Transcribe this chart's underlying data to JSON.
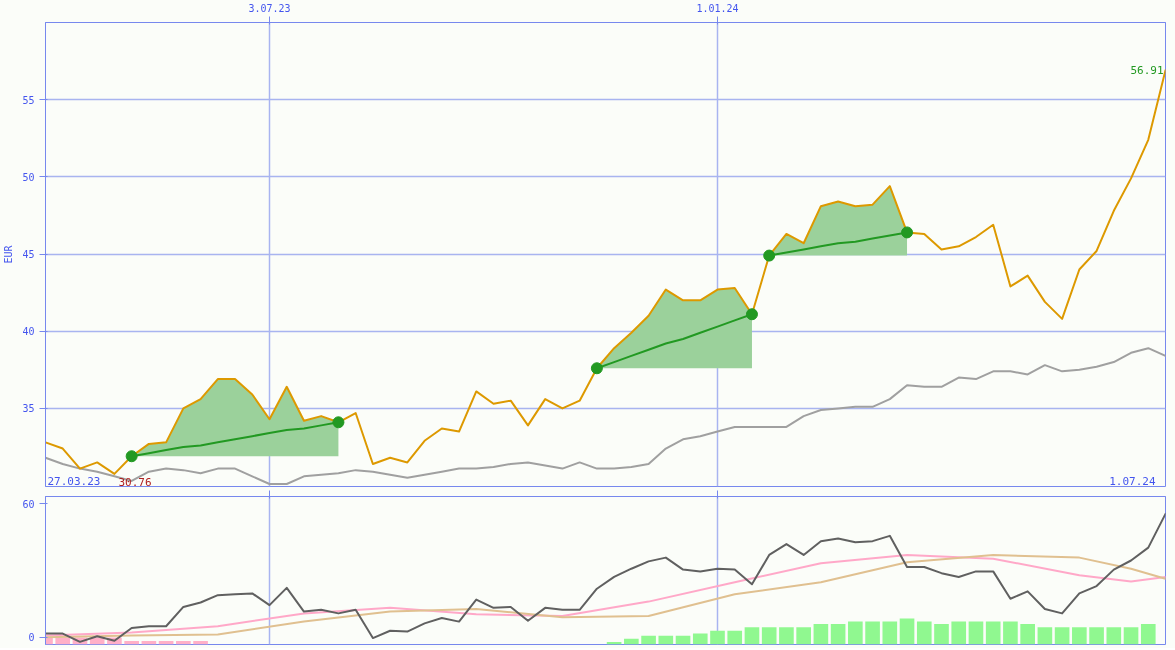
{
  "chart_data": [
    {
      "type": "line",
      "ylabel": "EUR",
      "x": [
        "2023-04-03",
        "2023-04-10",
        "2023-04-17",
        "2023-04-24",
        "2023-05-01",
        "2023-05-08",
        "2023-05-15",
        "2023-05-22",
        "2023-05-29",
        "2023-06-05",
        "2023-06-12",
        "2023-06-19",
        "2023-06-26",
        "2023-07-03",
        "2023-07-10",
        "2023-07-17",
        "2023-07-24",
        "2023-07-31",
        "2023-08-07",
        "2023-08-14",
        "2023-08-21",
        "2023-08-28",
        "2023-09-04",
        "2023-09-11",
        "2023-09-18",
        "2023-09-25",
        "2023-10-02",
        "2023-10-09",
        "2023-10-16",
        "2023-10-23",
        "2023-10-30",
        "2023-11-06",
        "2023-11-13",
        "2023-11-20",
        "2023-11-27",
        "2023-12-04",
        "2023-12-11",
        "2023-12-18",
        "2023-12-25",
        "2024-01-01",
        "2024-01-08",
        "2024-01-15",
        "2024-01-22",
        "2024-01-29",
        "2024-02-05",
        "2024-02-12",
        "2024-02-19",
        "2024-02-26",
        "2024-03-04",
        "2024-03-11",
        "2024-03-18",
        "2024-03-25",
        "2024-04-01",
        "2024-04-08",
        "2024-04-15",
        "2024-04-22",
        "2024-04-29",
        "2024-05-06",
        "2024-05-13",
        "2024-05-20",
        "2024-05-27",
        "2024-06-03",
        "2024-06-10",
        "2024-06-17",
        "2024-06-24",
        "2024-07-01"
      ],
      "xlim": [
        "2023-04-03",
        "2024-07-01"
      ],
      "xticks": [
        {
          "value": "2023-07-03",
          "label": "3.07.23"
        },
        {
          "value": "2024-01-01",
          "label": "1.01.24"
        }
      ],
      "ylim": [
        29.94,
        60
      ],
      "yticks": [
        35,
        40,
        45,
        50,
        55
      ],
      "grid": true,
      "series": [
        {
          "type": "line",
          "color": "#229922",
          "x": [
            "2023-05-08",
            "2023-05-15",
            "2023-05-22",
            "2023-05-29",
            "2023-06-05",
            "2023-06-12",
            "2023-06-19",
            "2023-06-26",
            "2023-07-03",
            "2023-07-10",
            "2023-07-17",
            "2023-07-24",
            "2023-07-31"
          ],
          "values": [
            31.9,
            32.1,
            32.3,
            32.5,
            32.6,
            32.8,
            33.0,
            33.2,
            33.4,
            33.6,
            33.7,
            33.9,
            34.1
          ],
          "upper": [
            31.9,
            32.7,
            32.8,
            35.0,
            35.6,
            36.9,
            36.9,
            35.9,
            34.3,
            36.4,
            34.2,
            34.5,
            34.1
          ],
          "lower": [
            31.9,
            31.9,
            31.9,
            31.9,
            31.9,
            31.9,
            31.9,
            31.9,
            31.9,
            31.9,
            31.9,
            31.9,
            31.9
          ]
        },
        {
          "type": "line",
          "color": "#229922",
          "x": [
            "2023-11-13",
            "2023-11-20",
            "2023-11-27",
            "2023-12-04",
            "2023-12-11",
            "2023-12-18",
            "2023-12-25",
            "2024-01-01",
            "2024-01-08",
            "2024-01-15"
          ],
          "values": [
            37.6,
            38.0,
            38.4,
            38.8,
            39.2,
            39.5,
            39.9,
            40.3,
            40.7,
            41.1
          ],
          "upper": [
            37.6,
            38.9,
            39.9,
            41.0,
            42.7,
            42.0,
            42.0,
            42.7,
            42.8,
            41.1
          ],
          "lower": [
            37.6,
            37.6,
            37.6,
            37.6,
            37.6,
            37.6,
            37.6,
            37.6,
            37.6,
            37.6
          ]
        },
        {
          "type": "line",
          "color": "#229922",
          "x": [
            "2024-01-22",
            "2024-01-29",
            "2024-02-05",
            "2024-02-12",
            "2024-02-19",
            "2024-02-26",
            "2024-03-04",
            "2024-03-11",
            "2024-03-18"
          ],
          "values": [
            44.9,
            45.1,
            45.3,
            45.5,
            45.7,
            45.8,
            46.0,
            46.2,
            46.4
          ],
          "upper": [
            44.9,
            46.3,
            45.7,
            48.1,
            48.4,
            48.1,
            48.2,
            49.4,
            46.4
          ],
          "lower": [
            44.9,
            44.9,
            44.9,
            44.9,
            44.9,
            44.9,
            44.9,
            44.9,
            44.9
          ]
        },
        {
          "color": "#a0a0a0",
          "values": [
            31.8,
            31.4,
            31.1,
            30.9,
            30.6,
            30.3,
            30.9,
            31.1,
            31.0,
            30.8,
            31.1,
            31.1,
            30.6,
            30.1,
            30.1,
            30.6,
            30.7,
            30.8,
            31.0,
            30.9,
            30.7,
            30.5,
            30.7,
            30.9,
            31.1,
            31.1,
            31.2,
            31.4,
            31.5,
            31.3,
            31.1,
            31.5,
            31.1,
            31.1,
            31.2,
            31.4,
            32.4,
            33.0,
            33.2,
            33.5,
            33.8,
            33.8,
            33.8,
            33.8,
            34.5,
            34.9,
            35.0,
            35.1,
            35.1,
            35.6,
            36.5,
            36.4,
            36.4,
            37.0,
            36.9,
            37.4,
            37.4,
            37.2,
            37.8,
            37.4,
            37.5,
            37.7,
            38.0,
            38.6,
            38.9,
            38.4
          ]
        },
        {
          "color": "#dd9900",
          "values": [
            32.8,
            32.4,
            31.1,
            31.5,
            30.76,
            31.9,
            32.7,
            32.8,
            35.0,
            35.6,
            36.9,
            36.9,
            35.9,
            34.3,
            36.4,
            34.2,
            34.5,
            34.1,
            34.7,
            31.4,
            31.8,
            31.5,
            32.9,
            33.7,
            33.5,
            36.1,
            35.3,
            35.5,
            33.9,
            35.6,
            35.0,
            35.5,
            37.6,
            38.9,
            39.9,
            41.0,
            42.7,
            42.0,
            42.0,
            42.7,
            42.8,
            41.1,
            44.9,
            46.3,
            45.7,
            48.1,
            48.4,
            48.1,
            48.2,
            49.4,
            46.4,
            46.3,
            45.3,
            45.5,
            46.1,
            46.9,
            42.9,
            43.6,
            41.9,
            40.8,
            44.0,
            45.2,
            47.8,
            49.9,
            52.4,
            56.91
          ]
        },
        {
          "type": "scatter",
          "color": "#229922",
          "marker": "circle",
          "x": [
            "2023-05-08",
            "2023-07-31",
            "2023-11-13",
            "2024-01-15",
            "2024-01-22",
            "2024-03-18"
          ],
          "values": [
            31.9,
            34.1,
            37.6,
            41.1,
            44.9,
            46.4
          ]
        }
      ],
      "annotations": [
        {
          "text": "30.76",
          "x": "2023-05-01",
          "y": 30.76
        },
        {
          "text": "56.91",
          "x": "2024-07-01",
          "y": 56.91
        },
        "27.03.23",
        "1.07.24"
      ]
    },
    {
      "type": "line",
      "x": [
        "2023-04-03",
        "2023-04-10",
        "2023-04-17",
        "2023-04-24",
        "2023-05-01",
        "2023-05-08",
        "2023-05-15",
        "2023-05-22",
        "2023-05-29",
        "2023-06-05",
        "2023-06-12",
        "2023-06-19",
        "2023-06-26",
        "2023-07-03",
        "2023-07-10",
        "2023-07-17",
        "2023-07-24",
        "2023-07-31",
        "2023-08-07",
        "2023-08-14",
        "2023-08-21",
        "2023-08-28",
        "2023-09-04",
        "2023-09-11",
        "2023-09-18",
        "2023-09-25",
        "2023-10-02",
        "2023-10-09",
        "2023-10-16",
        "2023-10-23",
        "2023-10-30",
        "2023-11-06",
        "2023-11-13",
        "2023-11-20",
        "2023-11-27",
        "2023-12-04",
        "2023-12-11",
        "2023-12-18",
        "2023-12-25",
        "2024-01-01",
        "2024-01-08",
        "2024-01-15",
        "2024-01-22",
        "2024-01-29",
        "2024-02-05",
        "2024-02-12",
        "2024-02-19",
        "2024-02-26",
        "2024-03-04",
        "2024-03-11",
        "2024-03-18",
        "2024-03-25",
        "2024-04-01",
        "2024-04-08",
        "2024-04-15",
        "2024-04-22",
        "2024-04-29",
        "2024-05-06",
        "2024-05-13",
        "2024-05-20",
        "2024-05-27",
        "2024-06-03",
        "2024-06-10",
        "2024-06-17",
        "2024-06-24",
        "2024-07-01"
      ],
      "xlim": [
        "2023-04-03",
        "2024-07-01"
      ],
      "xticks": [
        {
          "value": "2023-07-03",
          "label": null
        },
        {
          "value": "2024-01-01",
          "label": null
        }
      ],
      "ylim": [
        -3.3,
        63.3
      ],
      "yticks": [
        0,
        60
      ],
      "grid": "x",
      "tick_labels": "y",
      "series": [
        {
          "type": "bar",
          "color": "#ffb0c8",
          "values": [
            3.2,
            3.2,
            3.2,
            3.2,
            3.2,
            1.6,
            1.6,
            1.6,
            1.6,
            1.6,
            null,
            null,
            null,
            null,
            null,
            null,
            null,
            null,
            null,
            null,
            null,
            null,
            null,
            null,
            null,
            null,
            null,
            null,
            null,
            null,
            null,
            null,
            null,
            null,
            null,
            null,
            null,
            null,
            null,
            null,
            null,
            null,
            null,
            null,
            null,
            null,
            null,
            null,
            null,
            null,
            null,
            null,
            null,
            null,
            null,
            null,
            null,
            null,
            null,
            null,
            null,
            null,
            null,
            null,
            null,
            null
          ],
          "base": [
            -3.3,
            -3.3,
            -3.3,
            -3.3,
            -3.3,
            -3.3,
            -3.3,
            -3.3,
            -3.3,
            -3.3,
            null,
            null,
            null,
            null,
            null,
            null,
            null,
            null,
            null,
            null,
            null,
            null,
            null,
            null,
            null,
            null,
            null,
            null,
            null,
            null,
            null,
            null,
            null,
            null,
            null,
            null,
            null,
            null,
            null,
            null,
            null,
            null,
            null,
            null,
            null,
            null,
            null,
            null,
            null,
            null,
            null,
            null,
            null,
            null,
            null,
            null,
            null,
            null,
            null,
            null,
            null,
            null,
            null,
            null,
            null,
            null
          ]
        },
        {
          "type": "bar",
          "color": "#90f890",
          "values": [
            null,
            null,
            null,
            null,
            null,
            null,
            null,
            null,
            null,
            null,
            null,
            null,
            null,
            null,
            null,
            null,
            null,
            null,
            null,
            null,
            null,
            null,
            null,
            null,
            null,
            null,
            null,
            null,
            null,
            null,
            null,
            null,
            null,
            1.1,
            2.6,
            3.9,
            3.9,
            3.9,
            5.0,
            6.2,
            6.2,
            7.8,
            7.8,
            7.8,
            7.8,
            9.2,
            9.2,
            10.4,
            10.4,
            10.4,
            11.7,
            10.4,
            9.2,
            10.4,
            10.4,
            10.4,
            10.4,
            9.2,
            7.8,
            7.8,
            7.8,
            7.8,
            7.8,
            7.8,
            9.2,
            null
          ],
          "base": [
            null,
            null,
            null,
            null,
            null,
            null,
            null,
            null,
            null,
            null,
            null,
            null,
            null,
            null,
            null,
            null,
            null,
            null,
            null,
            null,
            null,
            null,
            null,
            null,
            null,
            null,
            null,
            null,
            null,
            null,
            null,
            null,
            null,
            -3.3,
            -3.3,
            -3.3,
            -3.3,
            -3.3,
            -3.3,
            -3.3,
            -3.3,
            -3.3,
            -3.3,
            -3.3,
            -3.3,
            -3.3,
            -3.3,
            -3.3,
            -3.3,
            -3.3,
            -3.3,
            -3.3,
            -3.3,
            -3.3,
            -3.3,
            -3.3,
            -3.3,
            -3.3,
            -3.3,
            -3.3,
            -3.3,
            -3.3,
            -3.3,
            -3.3,
            -3.3,
            null
          ]
        },
        {
          "color": "#ffa8c8",
          "x": [
            "2023-04-03",
            "2023-05-08",
            "2023-06-12",
            "2023-07-17",
            "2023-08-21",
            "2023-09-25",
            "2023-10-30",
            "2023-12-04",
            "2024-01-08",
            "2024-02-12",
            "2024-03-18",
            "2024-04-22",
            "2024-05-27",
            "2024-06-17",
            "2024-07-01"
          ],
          "values": [
            0.8,
            2.1,
            4.9,
            10.7,
            13.2,
            10.3,
            9.5,
            16.0,
            24.7,
            33.3,
            37.0,
            35.3,
            27.9,
            25.1,
            27.1
          ]
        },
        {
          "color": "#e0c090",
          "x": [
            "2023-04-03",
            "2023-05-08",
            "2023-06-12",
            "2023-07-17",
            "2023-08-21",
            "2023-09-25",
            "2023-10-30",
            "2023-12-04",
            "2024-01-08",
            "2024-02-12",
            "2024-03-18",
            "2024-04-22",
            "2024-05-27",
            "2024-06-17",
            "2024-07-01"
          ],
          "values": [
            0.0,
            0.8,
            1.2,
            7.0,
            11.5,
            12.7,
            9.0,
            9.5,
            19.3,
            24.7,
            33.7,
            37.0,
            35.8,
            30.8,
            26.3
          ]
        },
        {
          "color": "#606060",
          "values": [
            1.6,
            1.6,
            -2.1,
            0.4,
            -1.6,
            4.1,
            4.9,
            4.9,
            13.6,
            15.6,
            18.9,
            19.3,
            19.7,
            14.4,
            22.2,
            11.5,
            12.3,
            10.7,
            12.3,
            -0.4,
            2.9,
            2.5,
            6.2,
            8.6,
            7.0,
            16.9,
            13.2,
            13.6,
            7.4,
            13.2,
            12.3,
            12.3,
            21.8,
            27.1,
            30.8,
            34.1,
            35.8,
            30.4,
            29.6,
            30.8,
            30.4,
            23.8,
            37.0,
            41.9,
            37.0,
            43.2,
            44.4,
            42.7,
            43.2,
            45.6,
            31.6,
            31.6,
            28.8,
            27.1,
            29.6,
            29.6,
            17.3,
            20.6,
            12.7,
            10.7,
            19.7,
            23.0,
            30.4,
            34.5,
            40.3,
            55.5
          ]
        }
      ]
    }
  ]
}
